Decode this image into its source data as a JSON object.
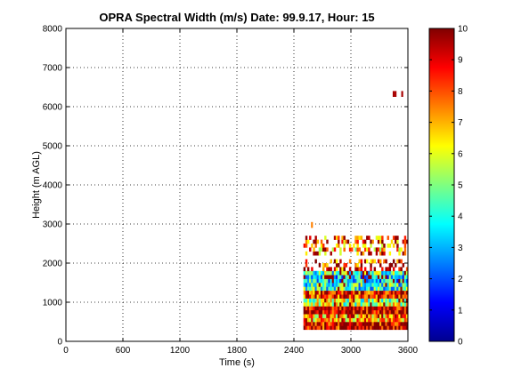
{
  "chart_data": {
    "type": "heatmap",
    "title": "OPRA Spectral Width (m/s)  Date: 99.9.17, Hour: 15",
    "xlabel": "Time (s)",
    "ylabel": "Height (m AGL)",
    "xlim": [
      0,
      3600
    ],
    "ylim": [
      0,
      8000
    ],
    "xticks": [
      "0",
      "600",
      "1200",
      "1800",
      "2400",
      "3000",
      "3600"
    ],
    "xtick_values": [
      0,
      600,
      1200,
      1800,
      2400,
      3000,
      3600
    ],
    "yticks": [
      "0",
      "1000",
      "2000",
      "3000",
      "4000",
      "5000",
      "6000",
      "7000",
      "8000"
    ],
    "ytick_values": [
      0,
      1000,
      2000,
      3000,
      4000,
      5000,
      6000,
      7000,
      8000
    ],
    "grid": true,
    "colorbar": {
      "colormap": "jet",
      "range": [
        0,
        10
      ],
      "ticks": [
        "0",
        "1",
        "2",
        "3",
        "4",
        "5",
        "6",
        "7",
        "8",
        "9",
        "10"
      ],
      "tick_values": [
        0,
        1,
        2,
        3,
        4,
        5,
        6,
        7,
        8,
        9,
        10
      ]
    },
    "data_region": {
      "time_range": [
        2500,
        3600
      ],
      "height_range": [
        300,
        2700
      ],
      "time_step": 20,
      "height_step": 100
    },
    "bands": [
      {
        "height_range": [
          300,
          500
        ],
        "mean_value": 9.2
      },
      {
        "height_range": [
          500,
          700
        ],
        "mean_value": 7.0
      },
      {
        "height_range": [
          700,
          900
        ],
        "mean_value": 9.5
      },
      {
        "height_range": [
          900,
          1100
        ],
        "mean_value": 5.5
      },
      {
        "height_range": [
          1100,
          1300
        ],
        "mean_value": 8.5
      },
      {
        "height_range": [
          1300,
          1500
        ],
        "mean_value": 4.2
      },
      {
        "height_range": [
          1500,
          1700
        ],
        "mean_value": 3.5
      },
      {
        "height_range": [
          1700,
          1800
        ],
        "mean_value": 4.5
      },
      {
        "height_range": [
          1800,
          2100
        ],
        "mean_value": 8.5,
        "sparse": true
      },
      {
        "height_range": [
          2200,
          2300
        ],
        "mean_value": 8.0,
        "sparse": true
      },
      {
        "height_range": [
          2300,
          2500
        ],
        "mean_value": 7.0,
        "sparse": true
      },
      {
        "height_range": [
          2500,
          2700
        ],
        "mean_value": 8.0,
        "sparse": true
      }
    ],
    "isolated_cells": [
      {
        "time": 2580,
        "height": 2900,
        "value": 7.5
      },
      {
        "time": 3440,
        "height": 6250,
        "value": 9.6
      },
      {
        "time": 3460,
        "height": 6250,
        "value": 9.6
      },
      {
        "time": 3530,
        "height": 6250,
        "value": 9.6
      }
    ]
  }
}
